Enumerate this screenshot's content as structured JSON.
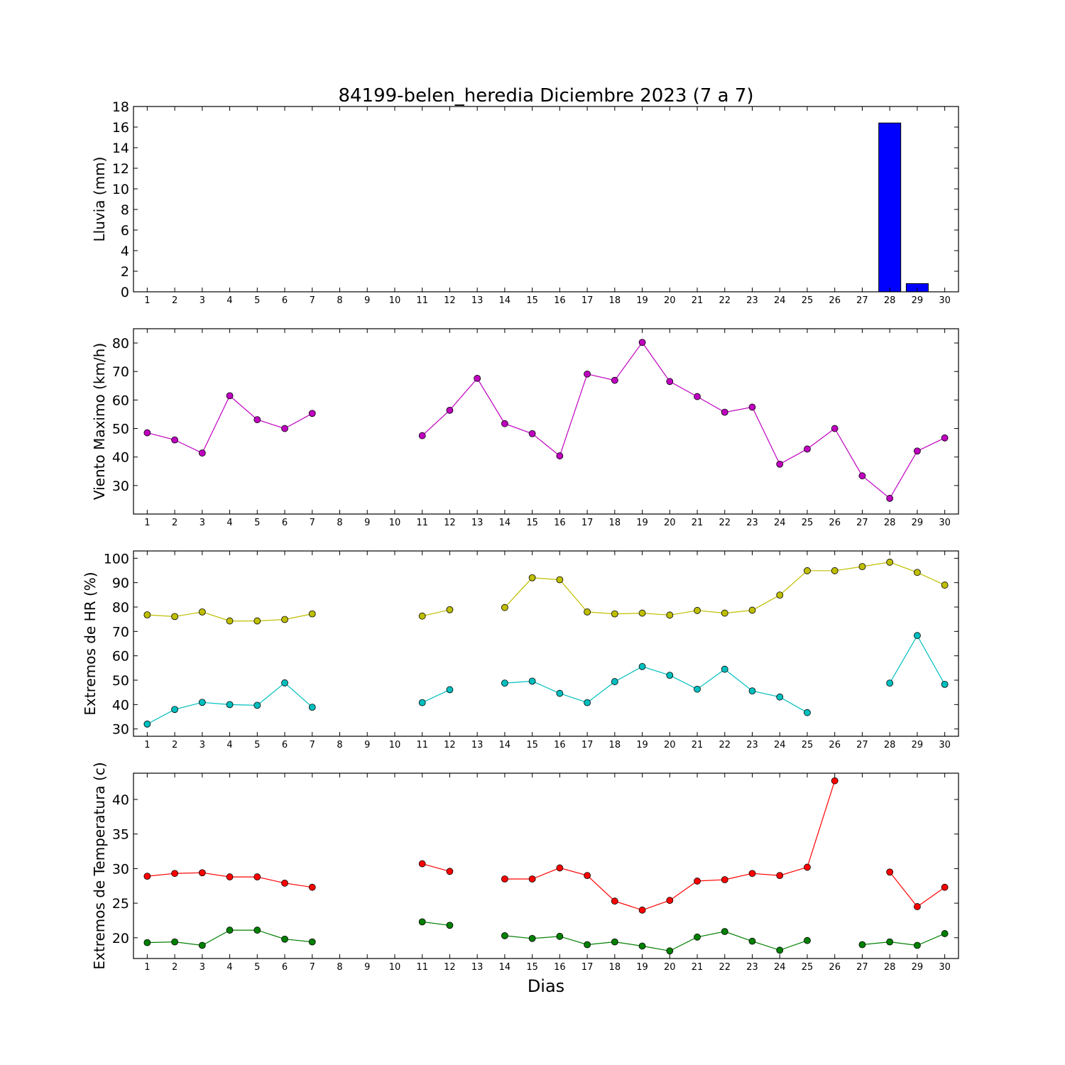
{
  "title": "84199-belen_heredia Diciembre 2023  (7 a 7)",
  "xlabel": "Dias",
  "chart_data": [
    {
      "type": "bar",
      "ylabel": "Lluvia (mm)",
      "x": [
        1,
        2,
        3,
        4,
        5,
        6,
        7,
        8,
        9,
        10,
        11,
        12,
        13,
        14,
        15,
        16,
        17,
        18,
        19,
        20,
        21,
        22,
        23,
        24,
        25,
        26,
        27,
        28,
        29,
        30
      ],
      "ylim": [
        0,
        18
      ],
      "yticks": [
        0,
        2,
        4,
        6,
        8,
        10,
        12,
        14,
        16,
        18
      ],
      "series": [
        {
          "color": "#0000ff",
          "values": [
            0,
            0,
            0,
            0,
            0,
            0,
            0,
            null,
            null,
            null,
            0,
            0,
            0,
            0,
            0,
            0,
            0,
            0,
            0,
            0,
            0,
            0,
            0,
            0,
            0,
            0,
            0,
            16.4,
            0.8,
            null
          ]
        }
      ]
    },
    {
      "type": "line",
      "ylabel": "Viento Maximo (km/h)",
      "x": [
        1,
        2,
        3,
        4,
        5,
        6,
        7,
        8,
        9,
        10,
        11,
        12,
        13,
        14,
        15,
        16,
        17,
        18,
        19,
        20,
        21,
        22,
        23,
        24,
        25,
        26,
        27,
        28,
        29,
        30
      ],
      "ylim": [
        20,
        85
      ],
      "yticks": [
        30,
        40,
        50,
        60,
        70,
        80
      ],
      "series": [
        {
          "color": "#bf00bf",
          "values": [
            48.5,
            46,
            41.4,
            61.5,
            53.1,
            50,
            55.3,
            null,
            null,
            null,
            47.5,
            56.4,
            67.6,
            51.7,
            48.2,
            40.4,
            69.1,
            66.9,
            80.2,
            66.5,
            61.2,
            55.7,
            57.5,
            37.5,
            42.8,
            50,
            33.4,
            25.5,
            42.1,
            46.7
          ]
        }
      ]
    },
    {
      "type": "line",
      "ylabel": "Extremos de HR (%)",
      "x": [
        1,
        2,
        3,
        4,
        5,
        6,
        7,
        8,
        9,
        10,
        11,
        12,
        13,
        14,
        15,
        16,
        17,
        18,
        19,
        20,
        21,
        22,
        23,
        24,
        25,
        26,
        27,
        28,
        29,
        30
      ],
      "ylim": [
        27,
        103
      ],
      "yticks": [
        30,
        40,
        50,
        60,
        70,
        80,
        90,
        100
      ],
      "series": [
        {
          "color": "#bfbf00",
          "values": [
            76.8,
            76.1,
            78,
            74.3,
            74.3,
            74.9,
            77.2,
            null,
            null,
            null,
            76.3,
            78.9,
            null,
            79.8,
            92,
            91.2,
            78,
            77.2,
            77.5,
            76.7,
            78.6,
            77.5,
            78.7,
            84.9,
            94.9,
            94.9,
            96.6,
            98.4,
            94.2,
            89
          ]
        },
        {
          "color": "#00bfbf",
          "values": [
            32,
            38,
            40.9,
            40,
            39.7,
            48.9,
            38.9,
            null,
            null,
            null,
            40.8,
            46.1,
            null,
            48.8,
            49.6,
            44.6,
            40.8,
            49.4,
            55.6,
            52,
            46.3,
            54.5,
            45.6,
            43.1,
            36.7,
            null,
            null,
            48.8,
            68.3,
            48.3
          ]
        }
      ]
    },
    {
      "type": "line",
      "ylabel": "Extremos de Temperatura (c)",
      "x": [
        1,
        2,
        3,
        4,
        5,
        6,
        7,
        8,
        9,
        10,
        11,
        12,
        13,
        14,
        15,
        16,
        17,
        18,
        19,
        20,
        21,
        22,
        23,
        24,
        25,
        26,
        27,
        28,
        29,
        30
      ],
      "ylim": [
        17,
        43.8
      ],
      "yticks": [
        20,
        25,
        30,
        35,
        40
      ],
      "series": [
        {
          "color": "#ff0000",
          "values": [
            28.9,
            29.3,
            29.4,
            28.8,
            28.8,
            27.9,
            27.3,
            null,
            null,
            null,
            30.7,
            29.6,
            null,
            28.5,
            28.5,
            30.1,
            29,
            25.3,
            24,
            25.4,
            28.2,
            28.4,
            29.3,
            29,
            30.2,
            42.7,
            null,
            29.5,
            24.5,
            27.3
          ]
        },
        {
          "color": "#008000",
          "values": [
            19.3,
            19.4,
            18.9,
            21.1,
            21.1,
            19.8,
            19.4,
            null,
            null,
            null,
            22.3,
            21.8,
            null,
            20.3,
            19.9,
            20.2,
            19,
            19.4,
            18.8,
            18.1,
            20.1,
            20.9,
            19.5,
            18.2,
            19.6,
            null,
            19,
            19.4,
            18.9,
            20.6
          ]
        }
      ]
    }
  ]
}
